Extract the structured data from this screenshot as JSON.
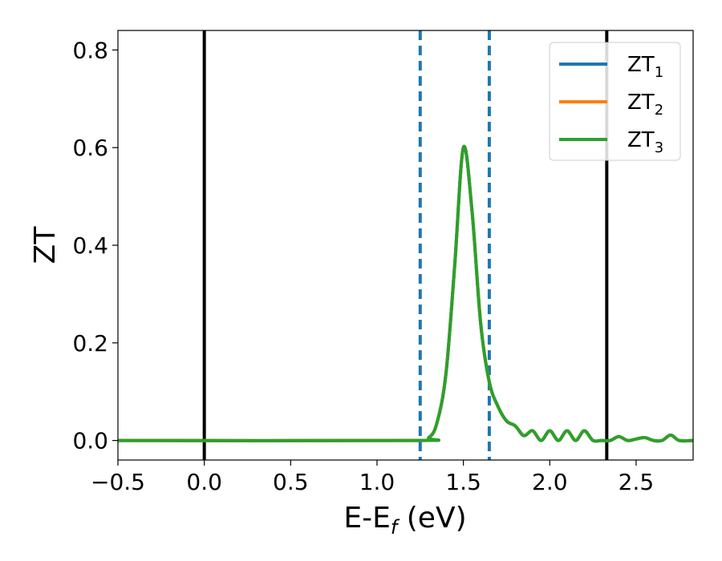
{
  "chart_data": {
    "type": "line",
    "xlabel": "E-E",
    "xlabel_subscript": "f",
    "xlabel_unit": "(eV)",
    "ylabel": "ZT",
    "xlim": [
      -0.5,
      2.83
    ],
    "ylim": [
      -0.04,
      0.84
    ],
    "xticks": [
      -0.5,
      0.0,
      0.5,
      1.0,
      1.5,
      2.0,
      2.5
    ],
    "xtick_labels": [
      "−0.5",
      "0.0",
      "0.5",
      "1.0",
      "1.5",
      "2.0",
      "2.5"
    ],
    "yticks": [
      0.0,
      0.2,
      0.4,
      0.6,
      0.8
    ],
    "ytick_labels": [
      "0.0",
      "0.2",
      "0.4",
      "0.6",
      "0.8"
    ],
    "grid": false,
    "legend_position": "top-right",
    "vertical_lines": [
      {
        "x": 0.0,
        "style": "solid",
        "color": "#000000"
      },
      {
        "x": 2.33,
        "style": "solid",
        "color": "#000000"
      },
      {
        "x": 1.25,
        "style": "dashed",
        "color": "#1f77b4"
      },
      {
        "x": 1.65,
        "style": "dashed",
        "color": "#1f77b4"
      }
    ],
    "series": [
      {
        "name": "ZT",
        "subscript": "1",
        "color": "#1f77b4",
        "x": [
          -0.5,
          1.2,
          1.3,
          1.35,
          1.4,
          1.45,
          1.5,
          1.55,
          1.6,
          1.65,
          1.7,
          1.75,
          1.8,
          1.85,
          1.9,
          1.95,
          2.0,
          2.05,
          2.1,
          2.15,
          2.2,
          2.25,
          2.3,
          2.35,
          2.4,
          2.45,
          2.5,
          2.55,
          2.6,
          2.65,
          2.7,
          2.75,
          2.83
        ],
        "y": [
          0.0,
          0.0,
          0.006,
          0.04,
          0.14,
          0.36,
          0.6,
          0.47,
          0.24,
          0.12,
          0.07,
          0.04,
          0.03,
          0.01,
          0.02,
          0.0,
          0.02,
          0.0,
          0.02,
          0.0,
          0.02,
          0.0,
          0.0,
          0.0,
          0.008,
          0.0,
          0.003,
          0.006,
          0.0,
          0.0,
          0.011,
          0.0,
          0.0
        ]
      },
      {
        "name": "ZT",
        "subscript": "2",
        "color": "#ff7f0e",
        "x": [
          -0.5,
          1.2,
          1.3,
          1.35,
          1.4,
          1.45,
          1.5,
          1.55,
          1.6,
          1.65,
          1.7,
          1.75,
          1.8,
          1.85,
          1.9,
          1.95,
          2.0,
          2.05,
          2.1,
          2.15,
          2.2,
          2.25,
          2.3,
          2.35,
          2.4,
          2.45,
          2.5,
          2.55,
          2.6,
          2.65,
          2.7,
          2.75,
          2.83
        ],
        "y": [
          0.0,
          0.0,
          0.006,
          0.04,
          0.14,
          0.36,
          0.6,
          0.47,
          0.24,
          0.12,
          0.07,
          0.04,
          0.03,
          0.01,
          0.02,
          0.0,
          0.02,
          0.0,
          0.02,
          0.0,
          0.02,
          0.0,
          0.0,
          0.0,
          0.008,
          0.0,
          0.003,
          0.006,
          0.0,
          0.0,
          0.011,
          0.0,
          0.0
        ]
      },
      {
        "name": "ZT",
        "subscript": "3",
        "color": "#2ca02c",
        "x": [
          -0.5,
          1.2,
          1.3,
          1.35,
          1.4,
          1.45,
          1.5,
          1.55,
          1.6,
          1.65,
          1.7,
          1.75,
          1.8,
          1.85,
          1.9,
          1.95,
          2.0,
          2.05,
          2.1,
          2.15,
          2.2,
          2.25,
          2.3,
          2.35,
          2.4,
          2.45,
          2.5,
          2.55,
          2.6,
          2.65,
          2.7,
          2.75,
          2.83
        ],
        "y": [
          0.0,
          0.0,
          0.006,
          0.04,
          0.14,
          0.36,
          0.6,
          0.47,
          0.24,
          0.12,
          0.07,
          0.04,
          0.03,
          0.01,
          0.02,
          0.0,
          0.02,
          0.0,
          0.02,
          0.0,
          0.02,
          0.0,
          0.0,
          0.0,
          0.008,
          0.0,
          0.003,
          0.006,
          0.0,
          0.0,
          0.011,
          0.0,
          0.0
        ]
      }
    ]
  }
}
